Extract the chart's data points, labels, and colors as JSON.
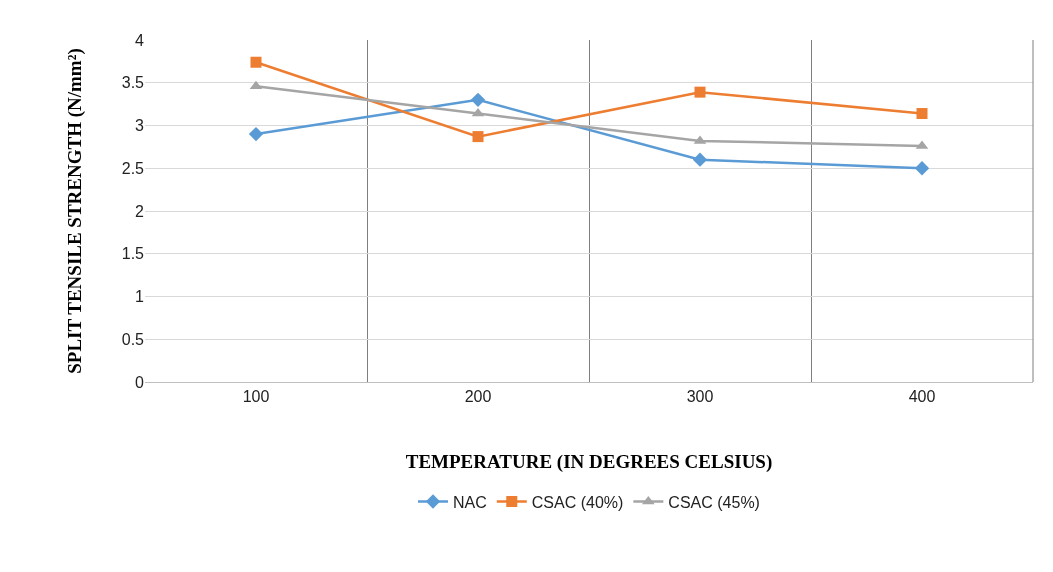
{
  "chart_data": {
    "type": "line",
    "xlabel": "TEMPERATURE (IN DEGREES CELSIUS)",
    "ylabel": "SPLIT TENSILE STRENGTH (N/mm²)",
    "categories": [
      "100",
      "200",
      "300",
      "400"
    ],
    "series": [
      {
        "name": "NAC",
        "color": "#5b9bd5",
        "marker": "diamond",
        "values": [
          2.9,
          3.3,
          2.6,
          2.5
        ]
      },
      {
        "name": "CSAC (40%)",
        "color": "#ed7d31",
        "marker": "square",
        "values": [
          3.74,
          2.87,
          3.39,
          3.14
        ]
      },
      {
        "name": "CSAC (45%)",
        "color": "#a5a5a5",
        "marker": "triangle",
        "values": [
          3.46,
          3.14,
          2.82,
          2.76
        ]
      }
    ],
    "ylim": [
      0,
      4
    ],
    "yticks": [
      0,
      0.5,
      1,
      1.5,
      2,
      2.5,
      3,
      3.5,
      4
    ],
    "grid": true,
    "legend": "bottom",
    "line_style": "solid"
  }
}
